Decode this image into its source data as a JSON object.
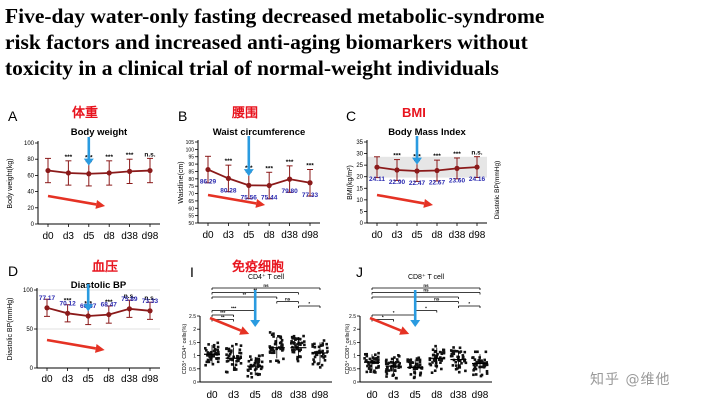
{
  "title_lines": [
    "Five-day water-only fasting decreased metabolic-syndrome",
    "risk factors and increased anti-aging biomarkers without",
    "toxicity in a clinical trial of normal-weight individuals"
  ],
  "watermark": "知乎 @维他",
  "side_note": "Diastolic BP(mmHg)",
  "colors": {
    "line": "#8b1a1a",
    "value": "#2a2ab0",
    "note": "#e8141e",
    "arrow_blue": "#2a9be0",
    "arrow_red": "#e53224",
    "shade": "#e6e6e6"
  },
  "chart_data": [
    {
      "type": "line",
      "panel": "A",
      "note": "体重",
      "title": "Body weight",
      "xlabel": "",
      "ylabel": "Body weight(kg)",
      "categories": [
        "d0",
        "d3",
        "d5",
        "d8",
        "d38",
        "d98"
      ],
      "ylim": [
        0,
        100
      ],
      "yticks": [
        0,
        20,
        40,
        60,
        80,
        100
      ],
      "values": [
        66,
        63,
        62,
        63,
        65,
        66
      ],
      "err": [
        15,
        15,
        15,
        15,
        15,
        15
      ],
      "sig": [
        "",
        "***",
        "***",
        "***",
        "***",
        "n.s."
      ],
      "value_labels": [],
      "highlight": 2,
      "grid": false,
      "ytick_size": 6
    },
    {
      "type": "line",
      "panel": "B",
      "note": "腰围",
      "title": "Waist circumference",
      "xlabel": "",
      "ylabel": "Waistline(cm)",
      "categories": [
        "d0",
        "d3",
        "d5",
        "d8",
        "d38",
        "d98"
      ],
      "ylim": [
        50,
        105
      ],
      "yticks": [
        50,
        55,
        60,
        65,
        70,
        75,
        80,
        85,
        90,
        95,
        100,
        105
      ],
      "values": [
        86.29,
        80.28,
        75.56,
        75.44,
        79.8,
        77.33
      ],
      "err": [
        9,
        9,
        9,
        9,
        9,
        9
      ],
      "sig": [
        "",
        "***",
        "***",
        "***",
        "***",
        "***"
      ],
      "value_labels": [
        "86.29",
        "80.28",
        "75.56",
        "75.44",
        "79.80",
        "77.33"
      ],
      "highlight": 2,
      "grid": false,
      "ytick_size": 5
    },
    {
      "type": "line",
      "panel": "C",
      "note": "BMI",
      "title": "Body Mass Index",
      "xlabel": "",
      "ylabel": "BMI(kg/m²)",
      "categories": [
        "d0",
        "d3",
        "d5",
        "d8",
        "d38",
        "d98"
      ],
      "ylim": [
        0,
        35
      ],
      "yticks": [
        0,
        5,
        10,
        15,
        20,
        25,
        30,
        35
      ],
      "values": [
        24.11,
        22.9,
        22.47,
        22.67,
        23.6,
        24.16
      ],
      "err": [
        4.5,
        4.5,
        4.5,
        4.5,
        4.5,
        4.5
      ],
      "sig": [
        "",
        "***",
        "***",
        "***",
        "***",
        "n.s."
      ],
      "value_labels": [
        "24.11",
        "22.90",
        "22.47",
        "22.67",
        "23.60",
        "24.16"
      ],
      "highlight": 2,
      "grid": false,
      "ytick_size": 6
    },
    {
      "type": "line",
      "panel": "D",
      "note": "血压",
      "title": "Diastolic BP",
      "xlabel": "",
      "ylabel": "Diastolic BP(mmHg)",
      "categories": [
        "d0",
        "d3",
        "d5",
        "d8",
        "d38",
        "d98"
      ],
      "ylim": [
        0,
        100
      ],
      "yticks": [
        0,
        50,
        100
      ],
      "values": [
        77.17,
        70.12,
        66.67,
        68.47,
        75.89,
        73.33
      ],
      "err": [
        11,
        11,
        11,
        11,
        11,
        11
      ],
      "sig": [
        "",
        "***",
        "***",
        "***",
        "n.s.",
        "n.s."
      ],
      "value_labels": [
        "77.17",
        "70.12",
        "66.67",
        "68.47",
        "75.89",
        "73.33"
      ],
      "highlight": 2,
      "grid": true,
      "ytick_size": 6
    },
    {
      "type": "scatter",
      "panel": "I",
      "note": "免疫细胞",
      "title": "CD4⁺ T cell",
      "xlabel": "",
      "ylabel": "CD3⁺ CD4⁺ cells(%)",
      "categories": [
        "d0",
        "d3",
        "d5",
        "d8",
        "d38",
        "d98"
      ],
      "ylim": [
        0,
        2.5
      ],
      "yticks": [
        0,
        0.5,
        1,
        1.5,
        2,
        2.5
      ],
      "medians": [
        1.05,
        0.9,
        0.6,
        1.3,
        1.3,
        1.1
      ],
      "spread": [
        0.35,
        0.4,
        0.35,
        0.4,
        0.4,
        0.4
      ],
      "points_per_group": 40,
      "brackets": [
        {
          "from": 0,
          "to": 5,
          "label": "ns"
        },
        {
          "from": 0,
          "to": 4,
          "label": "**"
        },
        {
          "from": 0,
          "to": 3,
          "label": "**"
        },
        {
          "from": 3,
          "to": 4,
          "label": "ns"
        },
        {
          "from": 4,
          "to": 5,
          "label": "*"
        },
        {
          "from": 0,
          "to": 2,
          "label": "***"
        },
        {
          "from": 0,
          "to": 1,
          "label": "***"
        },
        {
          "from": 0,
          "to": 1,
          "label": "**"
        }
      ],
      "highlight": 2
    },
    {
      "type": "scatter",
      "panel": "J",
      "note": "",
      "title": "CD8⁺ T cell",
      "xlabel": "",
      "ylabel": "CD3⁺ CD8⁺ cells(%)",
      "categories": [
        "d0",
        "d3",
        "d5",
        "d8",
        "d38",
        "d98"
      ],
      "ylim": [
        0,
        2.5
      ],
      "yticks": [
        0,
        0.5,
        1,
        1.5,
        2,
        2.5
      ],
      "medians": [
        0.75,
        0.6,
        0.55,
        0.9,
        0.85,
        0.7
      ],
      "spread": [
        0.3,
        0.3,
        0.3,
        0.4,
        0.35,
        0.35
      ],
      "points_per_group": 40,
      "brackets": [
        {
          "from": 0,
          "to": 5,
          "label": "ns"
        },
        {
          "from": 0,
          "to": 5,
          "label": "ns"
        },
        {
          "from": 0,
          "to": 4,
          "label": "*"
        },
        {
          "from": 2,
          "to": 4,
          "label": "ns"
        },
        {
          "from": 4,
          "to": 5,
          "label": "*"
        },
        {
          "from": 2,
          "to": 3,
          "label": "*"
        },
        {
          "from": 0,
          "to": 2,
          "label": "*"
        },
        {
          "from": 0,
          "to": 1,
          "label": "*"
        }
      ],
      "highlight": 2
    }
  ]
}
